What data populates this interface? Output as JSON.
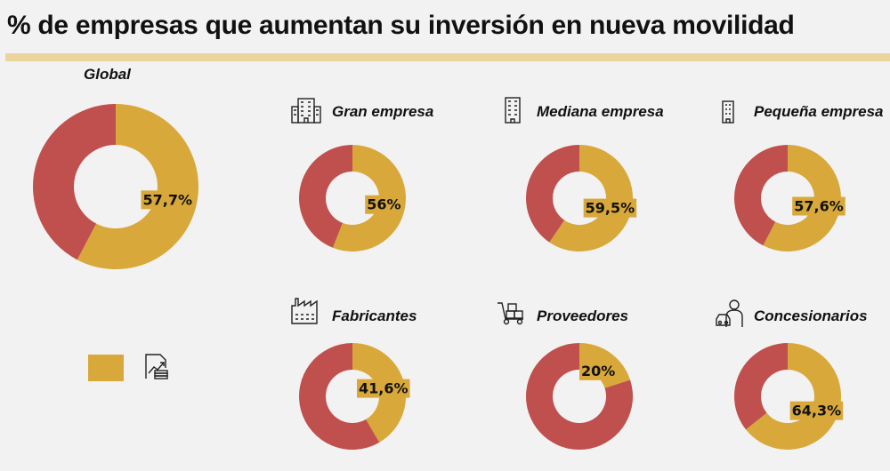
{
  "title": "% de empresas que aumentan su inversión en nueva movilidad",
  "colors": {
    "increase": "#D9A83A",
    "rest": "#C0504D"
  },
  "legend": {
    "icon": "investment-growth-icon"
  },
  "chart_data": [
    {
      "type": "pie",
      "name": "Global",
      "title": "Global",
      "icon": "",
      "values": [
        57.7,
        42.3
      ],
      "label": "57,7%"
    },
    {
      "type": "pie",
      "name": "gran",
      "title": "Gran empresa",
      "icon": "large-building-icon",
      "values": [
        56,
        44
      ],
      "label": "56%"
    },
    {
      "type": "pie",
      "name": "mediana",
      "title": "Mediana empresa",
      "icon": "medium-building-icon",
      "values": [
        59.5,
        40.5
      ],
      "label": "59,5%"
    },
    {
      "type": "pie",
      "name": "pequena",
      "title": "Pequeña empresa",
      "icon": "small-building-icon",
      "values": [
        57.6,
        42.4
      ],
      "label": "57,6%"
    },
    {
      "type": "pie",
      "name": "fabricantes",
      "title": "Fabricantes",
      "icon": "factory-icon",
      "values": [
        41.6,
        58.4
      ],
      "label": "41,6%"
    },
    {
      "type": "pie",
      "name": "proveedores",
      "title": "Proveedores",
      "icon": "hand-truck-icon",
      "values": [
        20,
        80
      ],
      "label": "20%"
    },
    {
      "type": "pie",
      "name": "concesionarios",
      "title": "Concesionarios",
      "icon": "car-dealer-icon",
      "values": [
        64.3,
        35.7
      ],
      "label": "64,3%"
    }
  ]
}
